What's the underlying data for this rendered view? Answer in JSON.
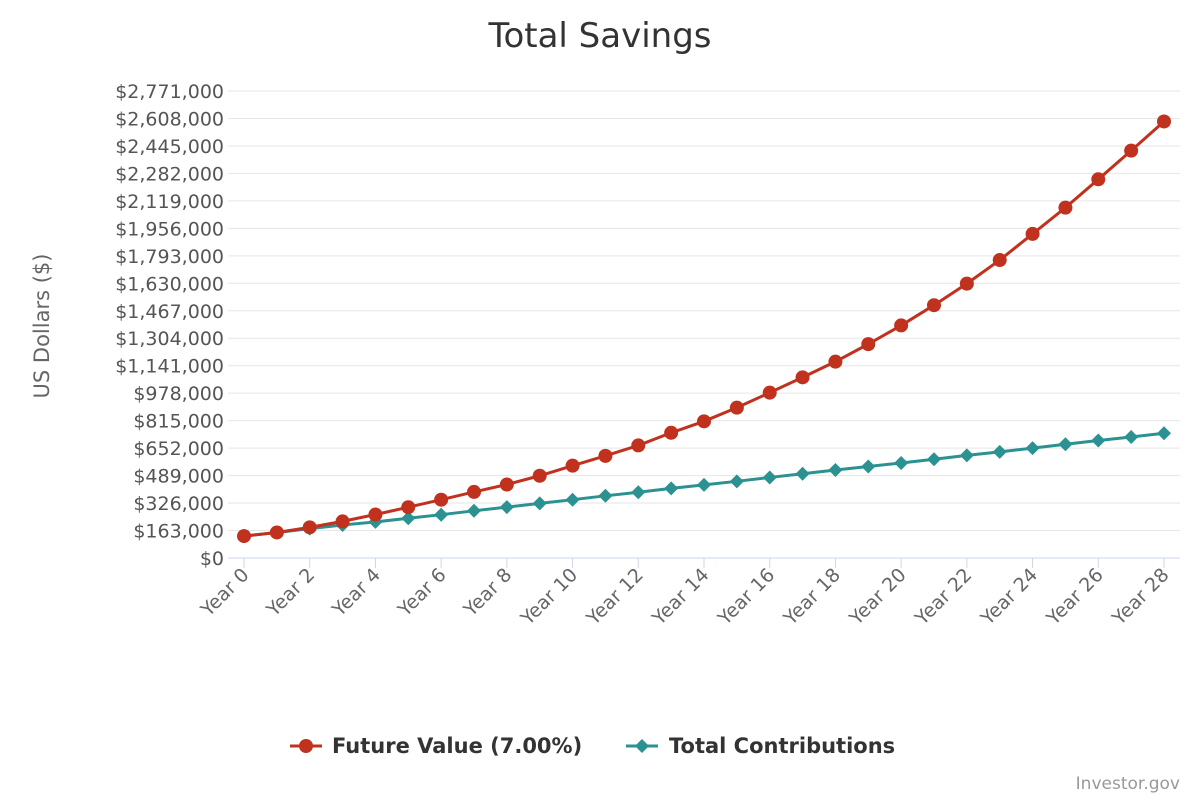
{
  "credit": "Investor.gov",
  "chart_data": {
    "type": "line",
    "title": "Total Savings",
    "ylabel": "US Dollars ($)",
    "xlabel": "",
    "ylim": [
      0,
      2771000
    ],
    "y_ticks": [
      "$0",
      "$163,000",
      "$326,000",
      "$489,000",
      "$652,000",
      "$815,000",
      "$978,000",
      "$1,141,000",
      "$1,304,000",
      "$1,467,000",
      "$1,630,000",
      "$1,793,000",
      "$1,956,000",
      "$2,119,000",
      "$2,282,000",
      "$2,445,000",
      "$2,608,000",
      "$2,771,000"
    ],
    "y_tick_values": [
      0,
      163000,
      326000,
      489000,
      652000,
      815000,
      978000,
      1141000,
      1304000,
      1467000,
      1630000,
      1793000,
      1956000,
      2119000,
      2282000,
      2445000,
      2608000,
      2771000
    ],
    "categories": [
      "Year 0",
      "Year 1",
      "Year 2",
      "Year 3",
      "Year 4",
      "Year 5",
      "Year 6",
      "Year 7",
      "Year 8",
      "Year 9",
      "Year 10",
      "Year 11",
      "Year 12",
      "Year 13",
      "Year 14",
      "Year 15",
      "Year 16",
      "Year 17",
      "Year 18",
      "Year 19",
      "Year 20",
      "Year 21",
      "Year 22",
      "Year 23",
      "Year 24",
      "Year 25",
      "Year 26",
      "Year 27",
      "Year 28"
    ],
    "x_tick_labels": [
      "Year 0",
      "Year 2",
      "Year 4",
      "Year 6",
      "Year 8",
      "Year 10",
      "Year 12",
      "Year 14",
      "Year 16",
      "Year 18",
      "Year 20",
      "Year 22",
      "Year 24",
      "Year 26",
      "Year 28"
    ],
    "grid": true,
    "legend_position": "bottom-center",
    "series": [
      {
        "name": "Future Value (7.00%)",
        "color": "#c0311e",
        "marker": "circle",
        "values": [
          130000,
          151500,
          181800,
          217200,
          258000,
          301500,
          346000,
          392000,
          436000,
          488000,
          548000,
          606000,
          668000,
          743000,
          811000,
          892000,
          981000,
          1072000,
          1165000,
          1269000,
          1380000,
          1500000,
          1628000,
          1768000,
          1923000,
          2079000,
          2247000,
          2417000,
          2590000
        ]
      },
      {
        "name": "Total Contributions",
        "color": "#2b9191",
        "marker": "diamond",
        "values": [
          130000,
          151000,
          174000,
          196000,
          214000,
          236000,
          257000,
          280000,
          302000,
          324000,
          346000,
          369000,
          390000,
          413000,
          434000,
          455000,
          478000,
          500000,
          522000,
          543000,
          564000,
          586000,
          609000,
          630000,
          652000,
          675000,
          697000,
          718000,
          740000
        ]
      }
    ]
  }
}
